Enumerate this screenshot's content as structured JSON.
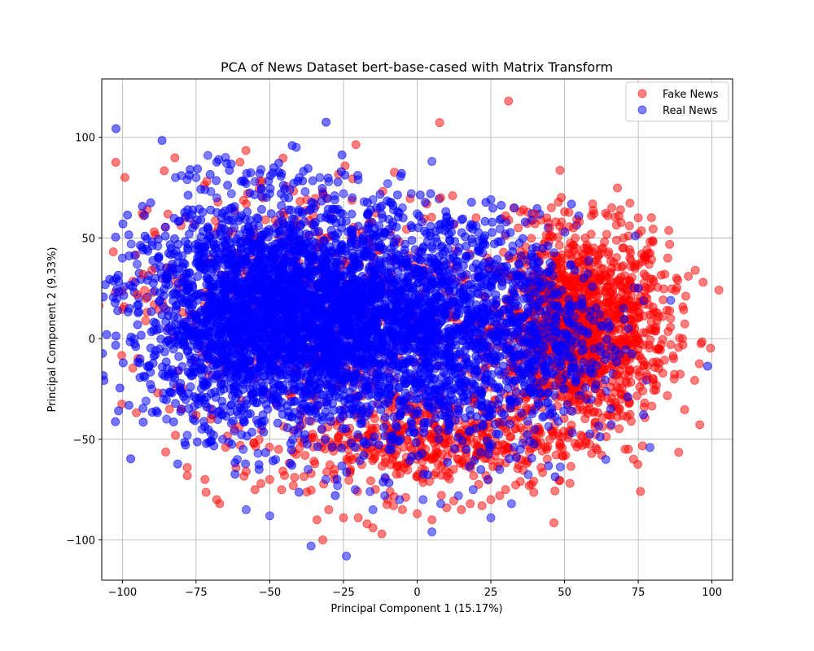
{
  "chart_data": {
    "type": "scatter",
    "title": "PCA of News Dataset bert-base-cased with Matrix Transform",
    "xlabel": "Principal Component 1 (15.17%)",
    "ylabel": "Principal Component 2 (9.33%)",
    "xlim": [
      -107,
      107
    ],
    "ylim": [
      -120,
      129
    ],
    "xticks": [
      -100,
      -75,
      -50,
      -25,
      0,
      25,
      50,
      75,
      100
    ],
    "yticks": [
      -100,
      -50,
      0,
      50,
      100
    ],
    "xtick_labels": [
      "−100",
      "−75",
      "−50",
      "−25",
      "0",
      "25",
      "50",
      "75",
      "100"
    ],
    "ytick_labels": [
      "−100",
      "−50",
      "0",
      "50",
      "100"
    ],
    "grid": true,
    "legend_position": "top-right",
    "series": [
      {
        "name": "Fake News",
        "color": "#ff0000",
        "alpha": 0.5,
        "x": [
          31,
          97,
          92,
          90,
          86,
          84,
          80,
          78,
          75,
          72,
          69,
          66,
          60,
          55,
          50,
          45,
          40,
          35,
          30,
          20,
          12,
          8,
          -12,
          -15,
          -17,
          -20,
          -25,
          -30,
          -32,
          -34,
          -42,
          -45,
          -50,
          -53,
          -55,
          -58,
          -60,
          -65,
          -67,
          -68,
          -72,
          -78,
          -82,
          -84,
          -88,
          -92,
          -95,
          -93,
          -90,
          60,
          65,
          70,
          75,
          80,
          85,
          88,
          55,
          58,
          62,
          52,
          48,
          45,
          42,
          38,
          35,
          30,
          28,
          25,
          22,
          18,
          15,
          10,
          5,
          0,
          -5,
          -8,
          -10,
          -22,
          -28,
          -38,
          -47,
          -62,
          -70,
          -75,
          -80,
          68,
          72,
          76,
          82,
          86,
          78,
          74,
          66,
          63,
          57,
          53,
          47,
          44,
          40,
          36
        ],
        "y": [
          118,
          28,
          31,
          0,
          -3,
          32,
          -22,
          -19,
          60,
          56,
          64,
          65,
          62,
          58,
          63,
          55,
          57,
          63,
          61,
          60,
          71,
          70,
          -97,
          -94,
          -92,
          -89,
          -89,
          -85,
          -100,
          -90,
          -73,
          -68,
          -70,
          -72,
          -75,
          -66,
          -53,
          -54,
          -82,
          -80,
          -70,
          -64,
          -48,
          -35,
          -27,
          20,
          22,
          32,
          34,
          45,
          43,
          50,
          52,
          48,
          40,
          30,
          -30,
          -28,
          -27,
          -25,
          -20,
          -50,
          -64,
          -73,
          -71,
          -75,
          -78,
          -80,
          -83,
          -82,
          -85,
          -84,
          -90,
          -87,
          -85,
          -83,
          -80,
          -60,
          -65,
          -58,
          -55,
          -45,
          -40,
          -38,
          -35,
          -18,
          -15,
          -10,
          -5,
          10,
          20,
          25,
          35,
          45,
          50,
          55,
          58,
          60,
          62,
          64
        ]
      },
      {
        "name": "Real News",
        "color": "#0000ff",
        "alpha": 0.5,
        "x": [
          -41,
          -71,
          -65,
          -53,
          -46,
          -40,
          -33,
          -30,
          -20,
          -10,
          -2,
          5,
          25,
          33,
          -100,
          -97,
          -95,
          -93,
          -90,
          -88,
          -85,
          -82,
          -80,
          -78,
          -75,
          -72,
          -70,
          -68,
          -63,
          -58,
          -55,
          -50,
          -45,
          -38,
          -32,
          -28,
          -25,
          -22,
          -18,
          -15,
          -12,
          -8,
          -5,
          0,
          10,
          15,
          20,
          30,
          -92,
          -85,
          -78,
          -70,
          -61,
          -58,
          -50,
          -36,
          -24,
          -15,
          5,
          25,
          32,
          64,
          86,
          74,
          -96,
          -94,
          -90,
          -86,
          -80,
          -76,
          -73,
          -69,
          -66,
          -62,
          -59,
          -54,
          -48,
          -43,
          -37,
          -31,
          -27,
          -21,
          -16,
          -11,
          -6,
          2,
          8,
          14,
          19,
          24,
          28,
          35,
          40,
          45,
          50,
          55,
          60,
          65,
          70,
          75
        ],
        "y": [
          95,
          91,
          90,
          84,
          82,
          80,
          80,
          78,
          79,
          77,
          72,
          88,
          69,
          65,
          40,
          47,
          37,
          44,
          48,
          46,
          35,
          80,
          81,
          79,
          80,
          74,
          73,
          70,
          72,
          77,
          78,
          72,
          70,
          73,
          72,
          71,
          72,
          70,
          68,
          69,
          66,
          64,
          65,
          62,
          60,
          59,
          56,
          52,
          -31,
          -40,
          -48,
          -47,
          -60,
          -85,
          -88,
          -103,
          -108,
          -85,
          -96,
          -89,
          -82,
          -60,
          19,
          51,
          0,
          -10,
          -25,
          -30,
          -35,
          -40,
          -45,
          -48,
          -50,
          -46,
          -55,
          -57,
          -60,
          -62,
          -65,
          -70,
          -73,
          -75,
          -76,
          -78,
          -80,
          -80,
          -82,
          -78,
          -75,
          -70,
          -65,
          -55,
          -45,
          -35,
          -25,
          -15,
          -5,
          5,
          15,
          25
        ]
      }
    ]
  }
}
